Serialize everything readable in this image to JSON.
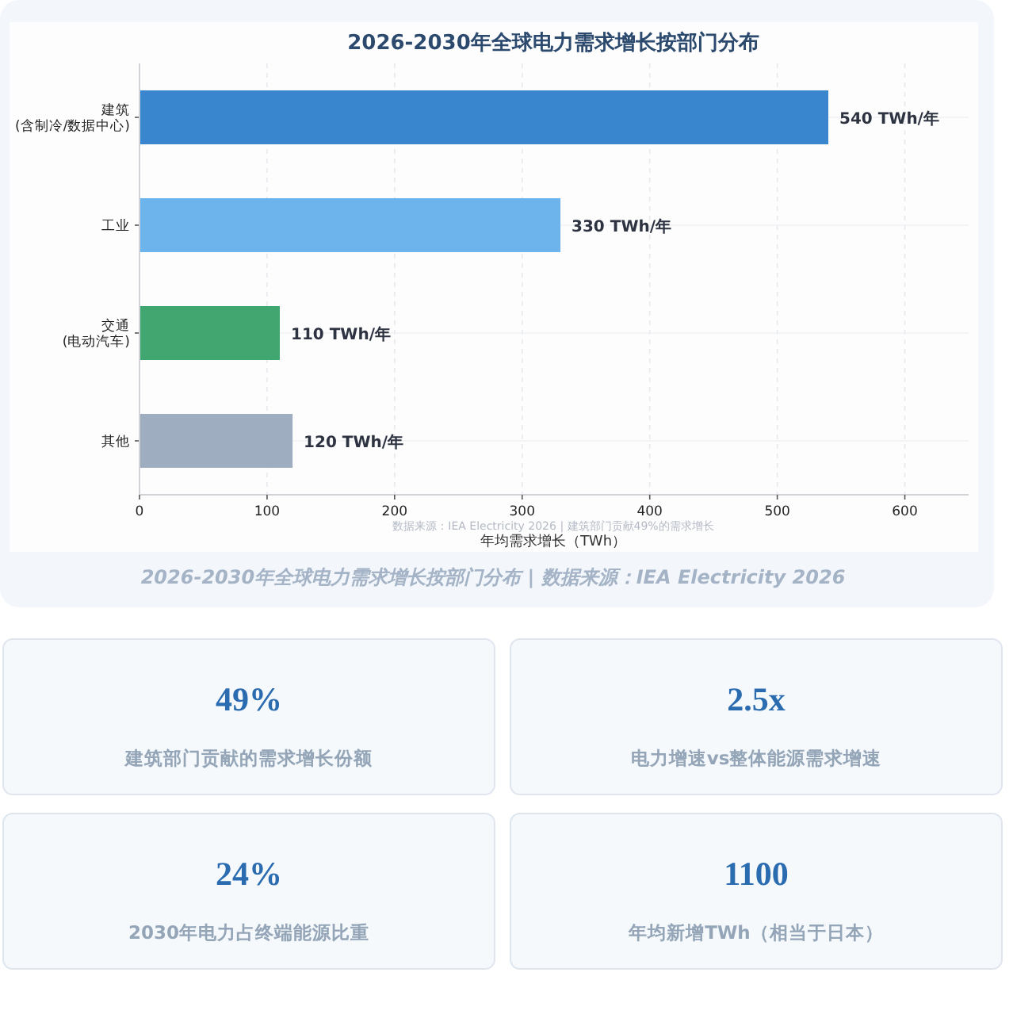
{
  "chart_data": [
    {
      "type": "bar",
      "orientation": "horizontal",
      "title": "2026-2030年全球电力需求增长按部门分布",
      "xlabel": "年均需求增长（TWh）",
      "categories": [
        "建筑\n(含制冷/数据中心)",
        "工业",
        "交通\n(电动汽车)",
        "其他"
      ],
      "values": [
        540,
        330,
        110,
        120
      ],
      "colors": [
        "#2f7fcb",
        "#64b0ea",
        "#38a169",
        "#9aa9bd"
      ],
      "value_labels": [
        "540 TWh/年",
        "330 TWh/年",
        "110 TWh/年",
        "120 TWh/年"
      ],
      "xlim": [
        0,
        650
      ],
      "xticks": [
        0,
        100,
        200,
        300,
        400,
        500,
        600
      ],
      "grid": true,
      "annotations": [
        "数据来源：IEA Electricity 2026 | 建筑部门贡献49%的需求增长",
        "2026-2030年全球电力需求增长按部门分布 | 数据来源：IEA Electricity 2026"
      ]
    },
    {
      "type": "other",
      "categories": [
        "建筑部门贡献的需求增长份额",
        "电力增速vs整体能源需求增速",
        "2030年电力占终端能源比重",
        "年均新增TWh（相当于日本）"
      ],
      "value_labels": [
        "49%",
        "2.5x",
        "24%",
        "1100"
      ]
    }
  ]
}
